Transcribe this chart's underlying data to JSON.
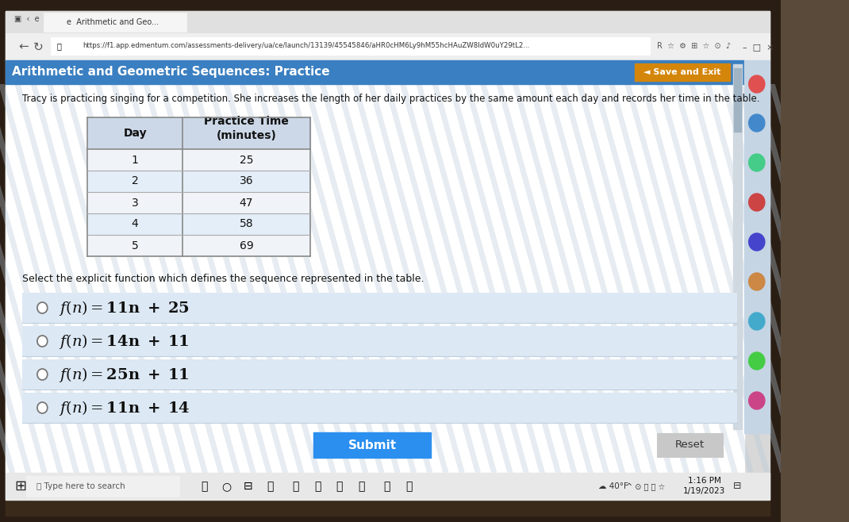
{
  "title_bar_text": "Arithmetic and Geometric Sequences: Practice",
  "title_bar_color": "#3a7fc1",
  "title_bar_text_color": "#ffffff",
  "save_exit_text": "◄ Save and Exit",
  "save_exit_color": "#d4860a",
  "url": "https://f1.app.edmentum.com/assessments-delivery/ua/ce/launch/13139/45545846/aHR0cHM6Ly9hM55hcHAuZW8ldW0uY29tL2...",
  "content_bg": "#ffffff",
  "page_bg": "#c5d5e4",
  "problem_text": "Tracy is practicing singing for a competition. She increases the length of her daily practices by the same amount each day and records her time in the table.",
  "table_data": [
    [
      1,
      25
    ],
    [
      2,
      36
    ],
    [
      3,
      47
    ],
    [
      4,
      58
    ],
    [
      5,
      69
    ]
  ],
  "select_text": "Select the explicit function which defines the sequence represented in the table.",
  "options": [
    "f(n) = 11n + 25",
    "f(n) = 14n + 11",
    "f(n) = 25n + 11",
    "f(n) = 11n + 14"
  ],
  "submit_btn_color": "#2b8fef",
  "submit_btn_text": "Submit",
  "reset_btn_color": "#c8c8c8",
  "reset_btn_text": "Reset",
  "taskbar_color": "#e8e8e8",
  "taskbar_search": "Type here to search",
  "time_line1": "1:16 PM",
  "time_line2": "1/19/2023",
  "temp_text": "40°F",
  "browser_tab_bg": "#e0e0e0",
  "browser_toolbar_bg": "#efefef",
  "tab_active_bg": "#f5f5f5",
  "outer_dark_bg": "#5a4a3a",
  "stripe_color": "#b8cad8",
  "stripe_alpha": 0.35,
  "right_sidebar_bg": "#c5d5e4",
  "scrollbar_color": "#a0b4c4",
  "option_row_bg": "#dce8f4",
  "option_divider": "#c0d0e0"
}
